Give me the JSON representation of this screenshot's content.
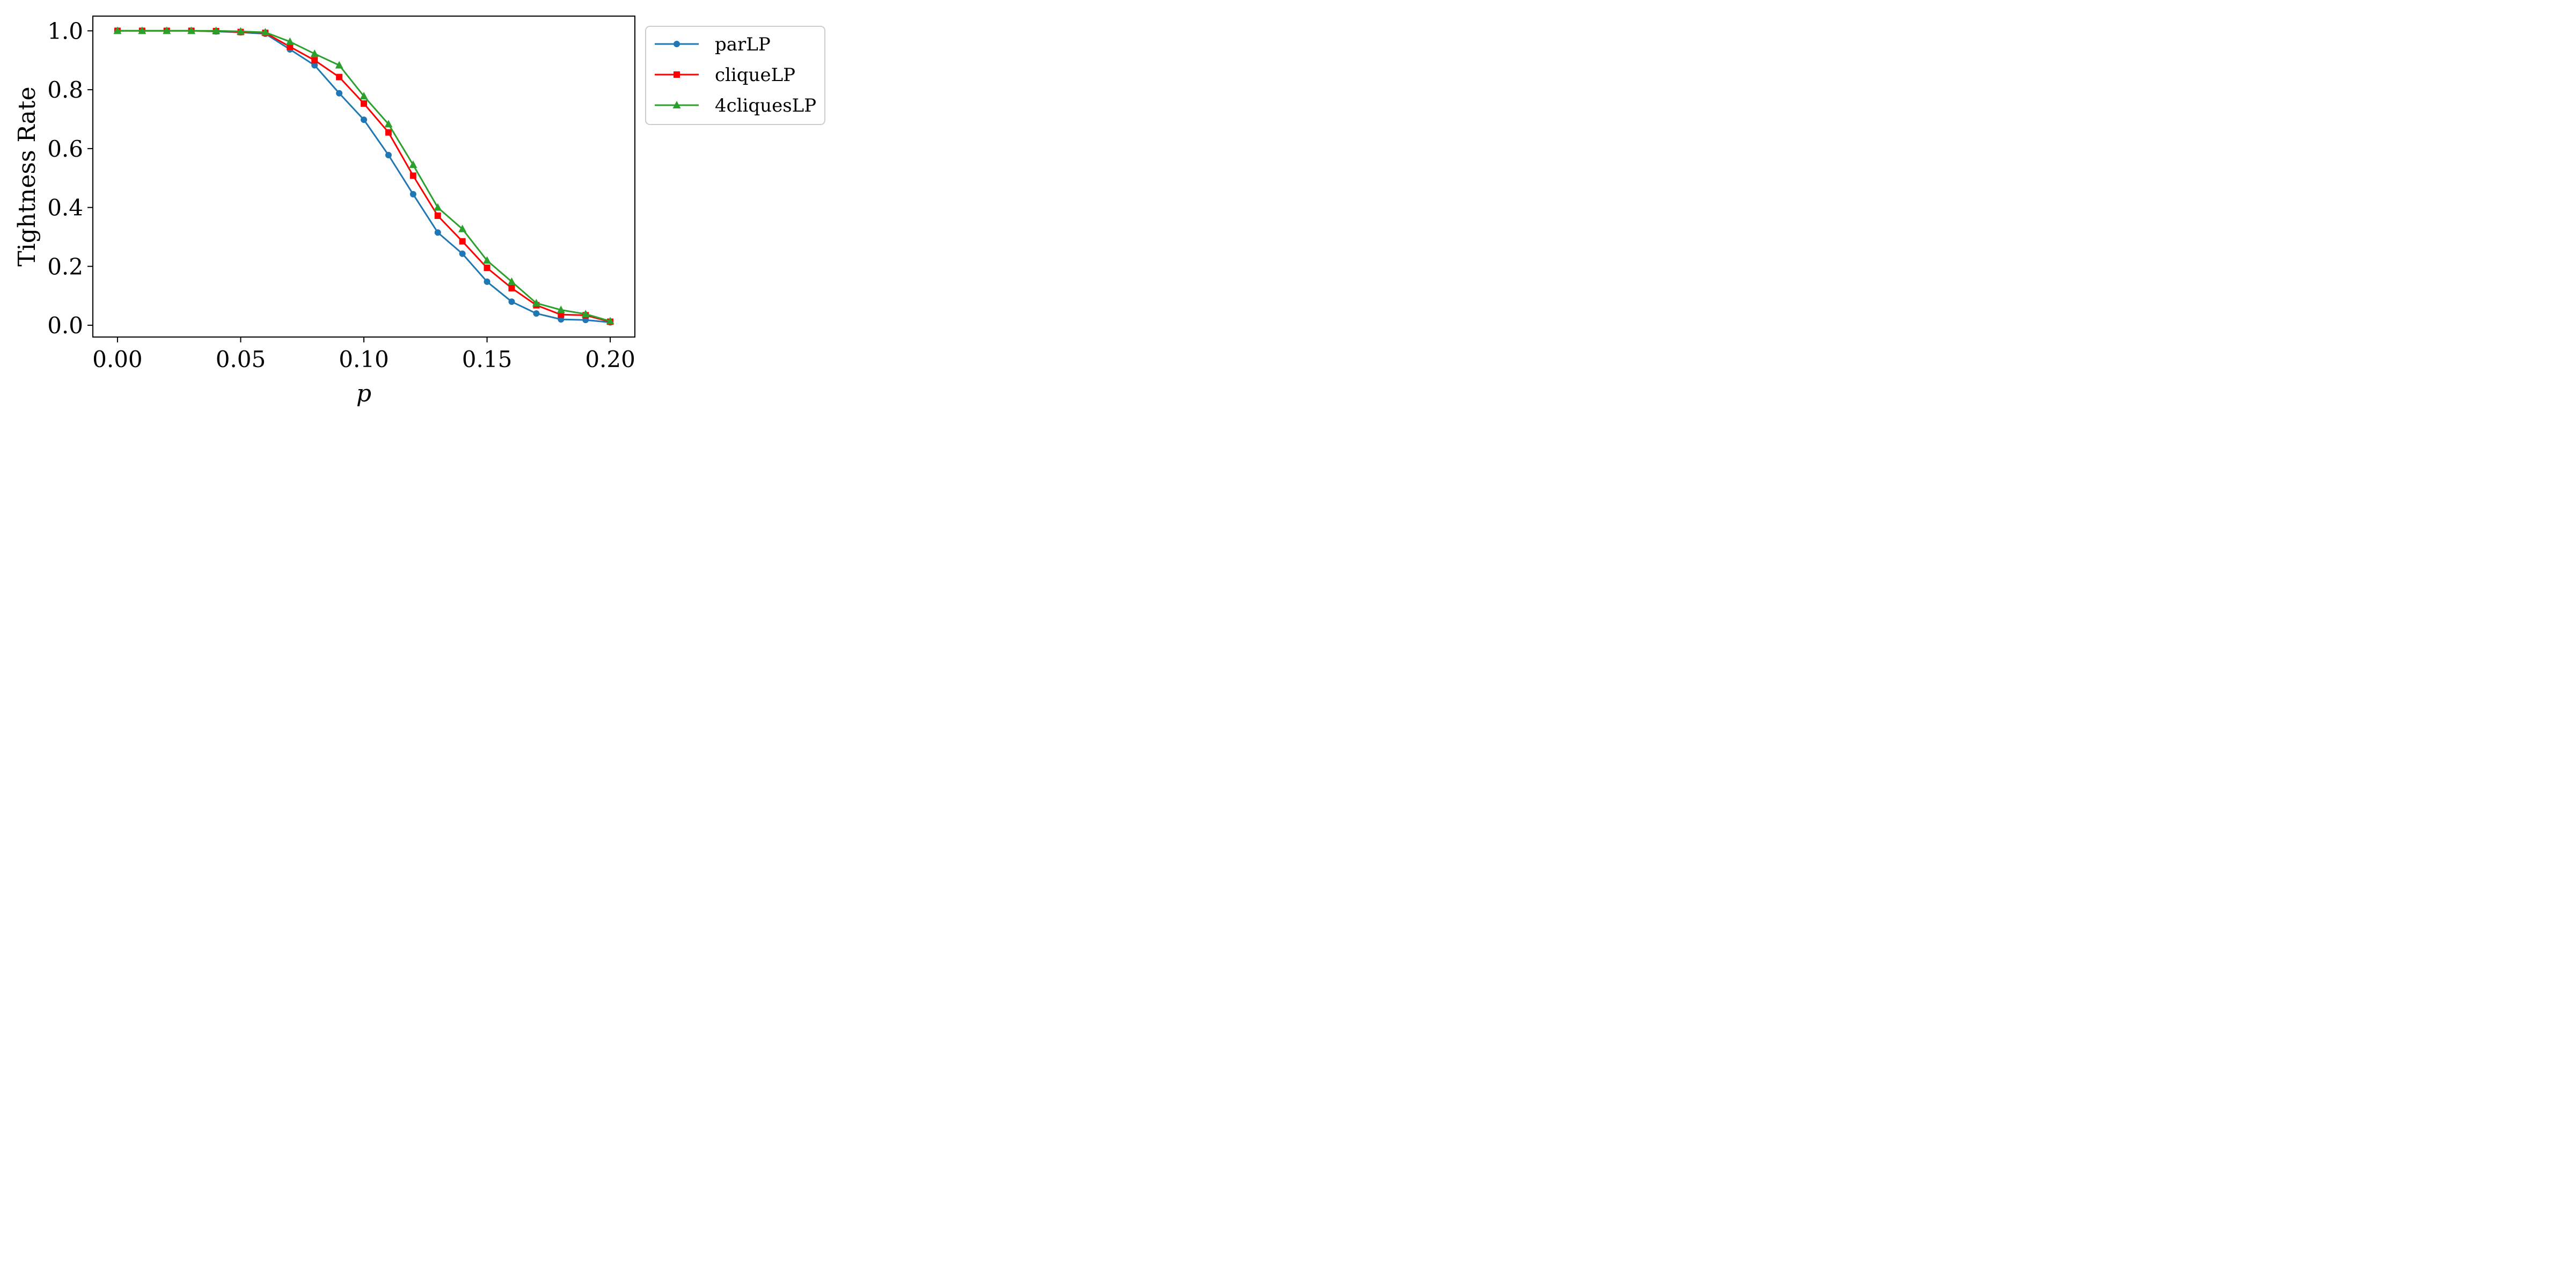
{
  "chart_data": {
    "type": "line",
    "xlabel": "p",
    "ylabel": "Tightness Rate",
    "xlim": [
      -0.01,
      0.21
    ],
    "ylim": [
      -0.04,
      1.05
    ],
    "xticks": [
      0.0,
      0.05,
      0.1,
      0.15,
      0.2
    ],
    "xtick_labels": [
      "0.00",
      "0.05",
      "0.10",
      "0.15",
      "0.20"
    ],
    "yticks": [
      0.0,
      0.2,
      0.4,
      0.6,
      0.8,
      1.0
    ],
    "ytick_labels": [
      "0.0",
      "0.2",
      "0.4",
      "0.6",
      "0.8",
      "1.0"
    ],
    "grid": false,
    "legend_position": "outside-right-top",
    "x": [
      0.0,
      0.01,
      0.02,
      0.03,
      0.04,
      0.05,
      0.06,
      0.07,
      0.08,
      0.09,
      0.1,
      0.11,
      0.12,
      0.13,
      0.14,
      0.15,
      0.16,
      0.17,
      0.18,
      0.19,
      0.2
    ],
    "series": [
      {
        "name": "parLP",
        "color": "#1f77b4",
        "marker": "circle",
        "values": [
          1.0,
          1.0,
          1.0,
          1.0,
          0.998,
          0.995,
          0.99,
          0.937,
          0.883,
          0.788,
          0.698,
          0.578,
          0.445,
          0.315,
          0.243,
          0.148,
          0.08,
          0.04,
          0.02,
          0.018,
          0.01
        ]
      },
      {
        "name": "cliqueLP",
        "color": "#ff0000",
        "marker": "square",
        "values": [
          1.0,
          1.0,
          1.0,
          1.0,
          0.999,
          0.996,
          0.993,
          0.946,
          0.9,
          0.843,
          0.753,
          0.655,
          0.508,
          0.372,
          0.285,
          0.195,
          0.126,
          0.068,
          0.036,
          0.034,
          0.012
        ]
      },
      {
        "name": "4cliquesLP",
        "color": "#2ca02c",
        "marker": "triangle",
        "values": [
          1.0,
          1.0,
          1.0,
          1.0,
          1.0,
          0.998,
          0.995,
          0.963,
          0.922,
          0.883,
          0.778,
          0.683,
          0.545,
          0.4,
          0.327,
          0.22,
          0.148,
          0.075,
          0.052,
          0.038,
          0.014
        ]
      }
    ]
  }
}
